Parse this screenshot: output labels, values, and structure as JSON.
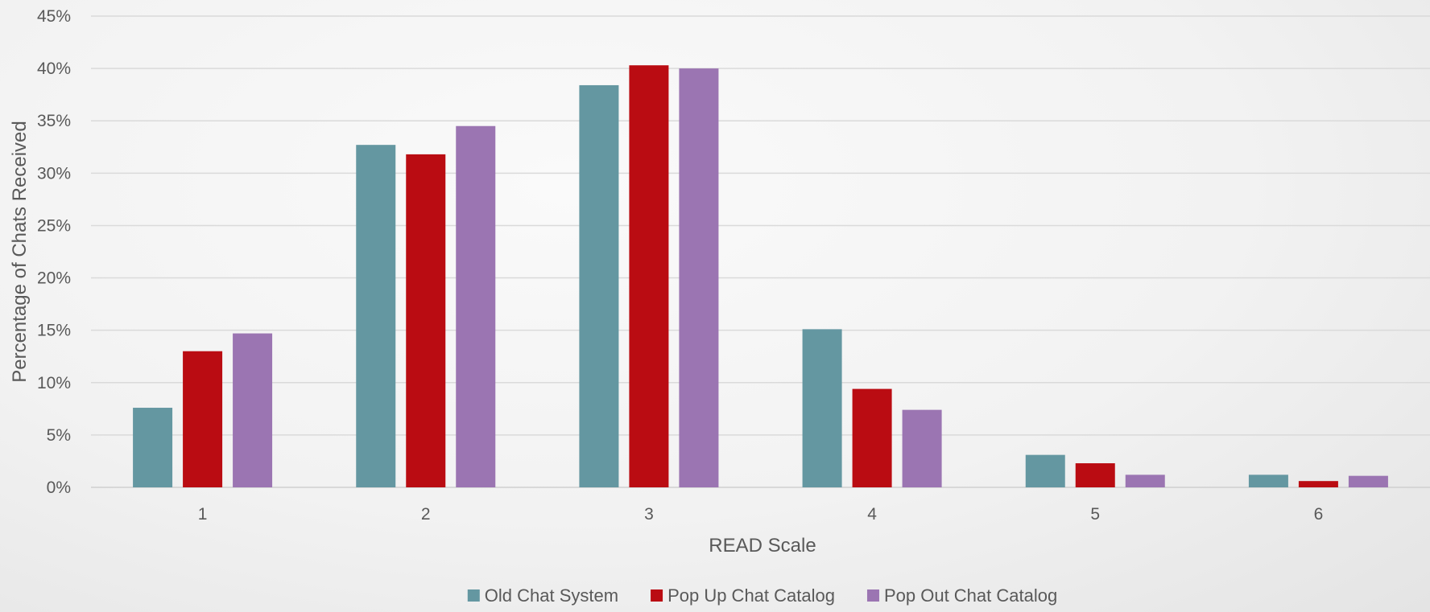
{
  "chart_data": {
    "type": "bar",
    "title": "",
    "xlabel": "READ Scale",
    "ylabel": "Percentage of Chats Received",
    "ylim": [
      0,
      45
    ],
    "yticks": [
      "0%",
      "5%",
      "10%",
      "15%",
      "20%",
      "25%",
      "30%",
      "35%",
      "40%",
      "45%"
    ],
    "grid": true,
    "legend_position": "bottom",
    "categories": [
      "1",
      "2",
      "3",
      "4",
      "5",
      "6"
    ],
    "series": [
      {
        "name": "Old Chat System",
        "color": "#6497A1",
        "values": [
          7.6,
          32.7,
          38.4,
          15.1,
          3.1,
          1.2
        ]
      },
      {
        "name": "Pop Up Chat Catalog",
        "color": "#BA0C12",
        "values": [
          13.0,
          31.8,
          40.3,
          9.4,
          2.3,
          0.6
        ]
      },
      {
        "name": "Pop Out Chat Catalog",
        "color": "#9B75B2",
        "values": [
          14.7,
          34.5,
          40.0,
          7.4,
          1.2,
          1.1
        ]
      }
    ]
  }
}
